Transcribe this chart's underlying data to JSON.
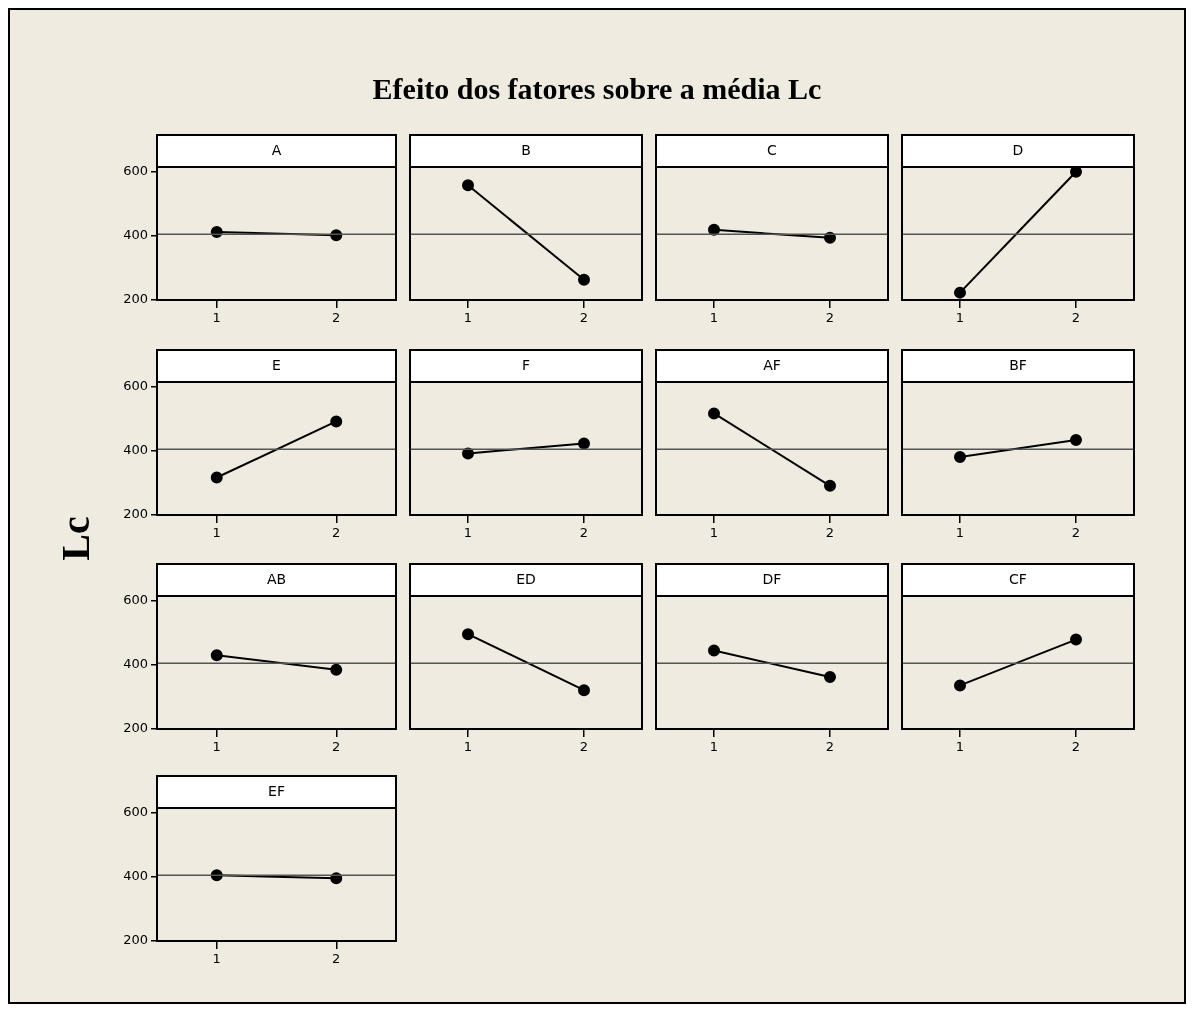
{
  "chart_data": [
    {
      "type": "line",
      "title": "A",
      "annotations": [
        "Efeito dos fatores sobre a média Lc"
      ],
      "ylabel": "Lc",
      "categories": [
        "1",
        "2"
      ],
      "values": [
        412,
        402
      ],
      "color": "#000000",
      "marker": "circle",
      "line_style": "solid",
      "ylim": [
        200,
        615
      ],
      "yticks": [
        200,
        400,
        600
      ],
      "ref_lines": [
        {
          "axis": "y",
          "value": 405,
          "color": "#555555"
        }
      ],
      "legend": false
    },
    {
      "type": "line",
      "title": "B",
      "categories": [
        "1",
        "2"
      ],
      "values": [
        558,
        263
      ],
      "color": "#000000",
      "marker": "circle",
      "line_style": "solid",
      "ylim": [
        200,
        615
      ],
      "yticks": [
        200,
        400,
        600
      ],
      "ref_lines": [
        {
          "axis": "y",
          "value": 405,
          "color": "#555555"
        }
      ],
      "legend": false,
      "tick_labels": "x"
    },
    {
      "type": "line",
      "title": "C",
      "categories": [
        "1",
        "2"
      ],
      "values": [
        419,
        394
      ],
      "color": "#000000",
      "marker": "circle",
      "line_style": "solid",
      "ylim": [
        200,
        615
      ],
      "yticks": [
        200,
        400,
        600
      ],
      "ref_lines": [
        {
          "axis": "y",
          "value": 405,
          "color": "#555555"
        }
      ],
      "legend": false,
      "tick_labels": "x"
    },
    {
      "type": "line",
      "title": "D",
      "categories": [
        "1",
        "2"
      ],
      "values": [
        223,
        600
      ],
      "color": "#000000",
      "marker": "circle",
      "line_style": "solid",
      "ylim": [
        200,
        615
      ],
      "yticks": [
        200,
        400,
        600
      ],
      "ref_lines": [
        {
          "axis": "y",
          "value": 405,
          "color": "#555555"
        }
      ],
      "legend": false,
      "tick_labels": "x"
    },
    {
      "type": "line",
      "title": "E",
      "categories": [
        "1",
        "2"
      ],
      "values": [
        317,
        492
      ],
      "color": "#000000",
      "marker": "circle",
      "line_style": "solid",
      "ylim": [
        200,
        615
      ],
      "yticks": [
        200,
        400,
        600
      ],
      "ref_lines": [
        {
          "axis": "y",
          "value": 405,
          "color": "#555555"
        }
      ],
      "legend": false
    },
    {
      "type": "line",
      "title": "F",
      "categories": [
        "1",
        "2"
      ],
      "values": [
        392,
        423
      ],
      "color": "#000000",
      "marker": "circle",
      "line_style": "solid",
      "ylim": [
        200,
        615
      ],
      "yticks": [
        200,
        400,
        600
      ],
      "ref_lines": [
        {
          "axis": "y",
          "value": 405,
          "color": "#555555"
        }
      ],
      "legend": false,
      "tick_labels": "x"
    },
    {
      "type": "line",
      "title": "AF",
      "categories": [
        "1",
        "2"
      ],
      "values": [
        517,
        291
      ],
      "color": "#000000",
      "marker": "circle",
      "line_style": "solid",
      "ylim": [
        200,
        615
      ],
      "yticks": [
        200,
        400,
        600
      ],
      "ref_lines": [
        {
          "axis": "y",
          "value": 405,
          "color": "#555555"
        }
      ],
      "legend": false,
      "tick_labels": "x"
    },
    {
      "type": "line",
      "title": "BF",
      "categories": [
        "1",
        "2"
      ],
      "values": [
        381,
        434
      ],
      "color": "#000000",
      "marker": "circle",
      "line_style": "solid",
      "ylim": [
        200,
        615
      ],
      "yticks": [
        200,
        400,
        600
      ],
      "ref_lines": [
        {
          "axis": "y",
          "value": 405,
          "color": "#555555"
        }
      ],
      "legend": false,
      "tick_labels": "x"
    },
    {
      "type": "line",
      "title": "AB",
      "categories": [
        "1",
        "2"
      ],
      "values": [
        430,
        385
      ],
      "color": "#000000",
      "marker": "circle",
      "line_style": "solid",
      "ylim": [
        200,
        615
      ],
      "yticks": [
        200,
        400,
        600
      ],
      "ref_lines": [
        {
          "axis": "y",
          "value": 405,
          "color": "#555555"
        }
      ],
      "legend": false
    },
    {
      "type": "line",
      "title": "ED",
      "categories": [
        "1",
        "2"
      ],
      "values": [
        496,
        321
      ],
      "color": "#000000",
      "marker": "circle",
      "line_style": "solid",
      "ylim": [
        200,
        615
      ],
      "yticks": [
        200,
        400,
        600
      ],
      "ref_lines": [
        {
          "axis": "y",
          "value": 405,
          "color": "#555555"
        }
      ],
      "legend": false,
      "tick_labels": "x"
    },
    {
      "type": "line",
      "title": "DF",
      "categories": [
        "1",
        "2"
      ],
      "values": [
        445,
        362
      ],
      "color": "#000000",
      "marker": "circle",
      "line_style": "solid",
      "ylim": [
        200,
        615
      ],
      "yticks": [
        200,
        400,
        600
      ],
      "ref_lines": [
        {
          "axis": "y",
          "value": 405,
          "color": "#555555"
        }
      ],
      "legend": false,
      "tick_labels": "x"
    },
    {
      "type": "line",
      "title": "CF",
      "categories": [
        "1",
        "2"
      ],
      "values": [
        336,
        479
      ],
      "color": "#000000",
      "marker": "circle",
      "line_style": "solid",
      "ylim": [
        200,
        615
      ],
      "yticks": [
        200,
        400,
        600
      ],
      "ref_lines": [
        {
          "axis": "y",
          "value": 405,
          "color": "#555555"
        }
      ],
      "legend": false,
      "tick_labels": "x"
    },
    {
      "type": "line",
      "title": "EF",
      "categories": [
        "1",
        "2"
      ],
      "values": [
        405,
        396
      ],
      "color": "#000000",
      "marker": "circle",
      "line_style": "solid",
      "ylim": [
        200,
        615
      ],
      "yticks": [
        200,
        400,
        600
      ],
      "ref_lines": [
        {
          "axis": "y",
          "value": 405,
          "color": "#555555"
        }
      ],
      "legend": false
    }
  ]
}
